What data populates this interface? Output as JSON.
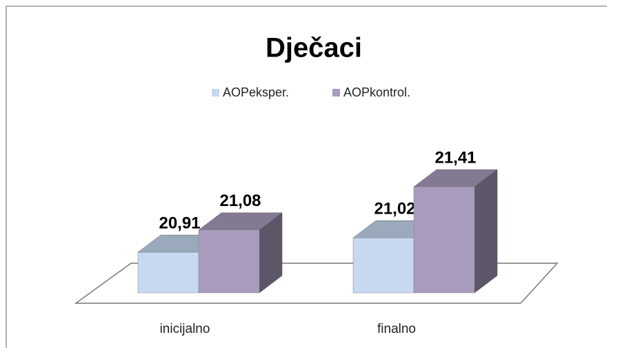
{
  "chart_data": {
    "type": "bar3d",
    "title": "Dječaci",
    "categories": [
      "inicijalno",
      "finalno"
    ],
    "series": [
      {
        "name": "AOPeksper.",
        "color": "#c6d9f1",
        "values": [
          20.91,
          21.02
        ],
        "value_labels": [
          "20,91",
          "21,02"
        ]
      },
      {
        "name": "AOPkontrol.",
        "color": "#a99bbd",
        "values": [
          21.08,
          21.41
        ],
        "value_labels": [
          "21,08",
          "21,41"
        ]
      }
    ],
    "ylim": [
      20.6,
      22.0
    ]
  }
}
